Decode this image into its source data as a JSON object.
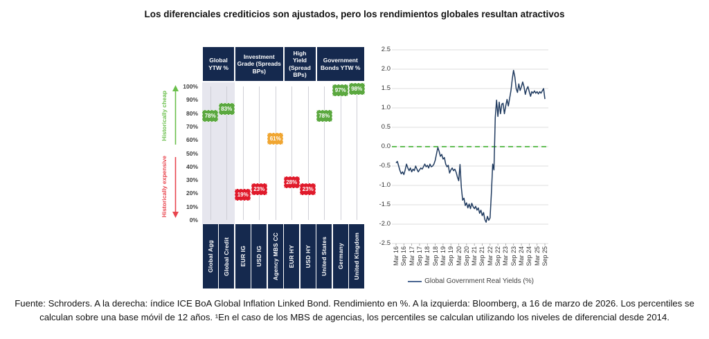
{
  "title": "Los diferenciales crediticios son ajustados, pero los rendimientos globales resultan atractivos",
  "footer": {
    "text": "Fuente: Schroders. A la derecha: índice ICE BoA Global Inflation Linked Bond. Rendimiento en %. A la izquierda: Bloomberg, a 16 de marzo de 2026. Los percentiles se calculan sobre una base móvil de 12 años. ¹En el caso de los MBS de agencias, los percentiles se calculan utilizando los niveles de diferencial desde 2014."
  },
  "colors": {
    "navy": "#15294E",
    "green": "#5BA83F",
    "orange": "#F0A632",
    "red": "#E01A2B",
    "cheap_green": "#6ABF4B",
    "expensive_red": "#E8454E",
    "line_navy": "#1F3A5F",
    "zero_dash_green": "#4CB53C",
    "legend_line": "#4A6591",
    "column_shade": "#E6E6EE",
    "gridline_gray": "#DEDEDE"
  },
  "chart_data": [
    {
      "type": "scatter",
      "subtype": "percentile-markers",
      "y_axis_ticks": [
        "100%",
        "90%",
        "80%",
        "70%",
        "60%",
        "50%",
        "40%",
        "30%",
        "20%",
        "10%",
        "0%"
      ],
      "ylim": [
        0,
        100
      ],
      "annotations": {
        "cheap": "Historically cheap",
        "expensive": "Historically expensive"
      },
      "groups": [
        {
          "label": "Global YTW %",
          "from": 0,
          "to": 1
        },
        {
          "label": "Investment Grade (Spreads BPs)",
          "from": 2,
          "to": 4
        },
        {
          "label": "High Yield (Spread BPs)",
          "from": 5,
          "to": 6
        },
        {
          "label": "Government Bonds YTW %",
          "from": 7,
          "to": 9
        }
      ],
      "columns": [
        {
          "label": "Global Agg",
          "value": 78,
          "display": "78%",
          "tone": "green",
          "shaded": true
        },
        {
          "label": "Global Credit",
          "value": 83,
          "display": "83%",
          "tone": "green",
          "shaded": true
        },
        {
          "label": "EUR IG",
          "value": 19,
          "display": "19%",
          "tone": "red",
          "shaded": false
        },
        {
          "label": "USD IG",
          "value": 23,
          "display": "23%",
          "tone": "red",
          "shaded": false
        },
        {
          "label": "Agency MBS CC",
          "value": 61,
          "display": "61%",
          "tone": "orange",
          "shaded": false
        },
        {
          "label": "EUR HY",
          "value": 28,
          "display": "28%",
          "tone": "red",
          "shaded": false
        },
        {
          "label": "USD HY",
          "value": 23,
          "display": "23%",
          "tone": "red",
          "shaded": false
        },
        {
          "label": "United States",
          "value": 78,
          "display": "78%",
          "tone": "green",
          "shaded": false
        },
        {
          "label": "Germany",
          "value": 97,
          "display": "97%",
          "tone": "green",
          "shaded": false
        },
        {
          "label": "United Kingdom",
          "value": 98,
          "display": "98%",
          "tone": "green",
          "shaded": false
        }
      ]
    },
    {
      "type": "line",
      "legend": "Global Government Real Yields (%)",
      "ylim": [
        -2.5,
        2.5
      ],
      "y_ticks": [
        "2.5",
        "2.0",
        "1.5",
        "1.0",
        "0.5",
        "0.0",
        "-0.5",
        "-1.0",
        "-1.5",
        "-2.0",
        "-2.5"
      ],
      "x_ticks": [
        "Mar 16",
        "Sep 16",
        "Mar 17",
        "Sep 17",
        "Mar 18",
        "Sep 18",
        "Mar 19",
        "Sep 19",
        "Mar 20",
        "Sep 20",
        "Mar 21",
        "Sep 21",
        "Mar 22",
        "Sep 22",
        "Mar 23",
        "Sep 23",
        "Mar 24",
        "Sep 24",
        "Mar 25",
        "Sep 25"
      ],
      "points_per_tick_interval": 6,
      "zero_line_dashed": true,
      "values_monthly": [
        -0.42,
        -0.38,
        -0.5,
        -0.62,
        -0.7,
        -0.65,
        -0.72,
        -0.6,
        -0.45,
        -0.55,
        -0.62,
        -0.55,
        -0.65,
        -0.58,
        -0.62,
        -0.5,
        -0.58,
        -0.65,
        -0.6,
        -0.55,
        -0.58,
        -0.52,
        -0.45,
        -0.52,
        -0.48,
        -0.55,
        -0.45,
        -0.52,
        -0.5,
        -0.45,
        -0.35,
        -0.18,
        -0.02,
        -0.12,
        -0.25,
        -0.2,
        -0.32,
        -0.28,
        -0.45,
        -0.52,
        -0.48,
        -0.68,
        -0.6,
        -0.55,
        -0.62,
        -0.58,
        -0.66,
        -0.78,
        -0.88,
        -0.46,
        -1.05,
        -1.38,
        -1.33,
        -1.52,
        -1.45,
        -1.58,
        -1.48,
        -1.6,
        -1.46,
        -1.55,
        -1.6,
        -1.54,
        -1.64,
        -1.58,
        -1.72,
        -1.64,
        -1.78,
        -1.7,
        -1.88,
        -1.95,
        -1.8,
        -1.9,
        -1.84,
        -1.2,
        -0.45,
        -0.6,
        0.75,
        1.2,
        0.78,
        1.15,
        0.85,
        1.1,
        1.12,
        0.85,
        1.05,
        1.22,
        1.05,
        1.25,
        1.45,
        1.75,
        1.97,
        1.8,
        1.5,
        1.4,
        1.62,
        1.45,
        1.55,
        1.67,
        1.55,
        1.35,
        1.48,
        1.55,
        1.42,
        1.3,
        1.42,
        1.38,
        1.44,
        1.38,
        1.42,
        1.36,
        1.42,
        1.38,
        1.44,
        1.5,
        1.23
      ]
    }
  ]
}
